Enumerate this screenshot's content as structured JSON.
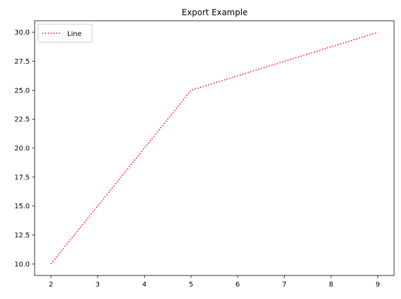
{
  "chart_data": {
    "type": "line",
    "title": "Export Example",
    "xlabel": "",
    "ylabel": "",
    "x": [
      2,
      5,
      9
    ],
    "series": [
      {
        "name": "Line",
        "values": [
          10,
          25,
          30
        ],
        "color": "#ff0000",
        "linestyle": "dotted"
      }
    ],
    "xlim": [
      1.65,
      9.35
    ],
    "ylim": [
      9.0,
      31.0
    ],
    "xticks": [
      2,
      3,
      4,
      5,
      6,
      7,
      8,
      9
    ],
    "xtick_labels": [
      "2",
      "3",
      "4",
      "5",
      "6",
      "7",
      "8",
      "9"
    ],
    "yticks": [
      10.0,
      12.5,
      15.0,
      17.5,
      20.0,
      22.5,
      25.0,
      27.5,
      30.0
    ],
    "ytick_labels": [
      "10.0",
      "12.5",
      "15.0",
      "17.5",
      "20.0",
      "22.5",
      "25.0",
      "27.5",
      "30.0"
    ],
    "grid": false,
    "legend_position": "top-left"
  }
}
